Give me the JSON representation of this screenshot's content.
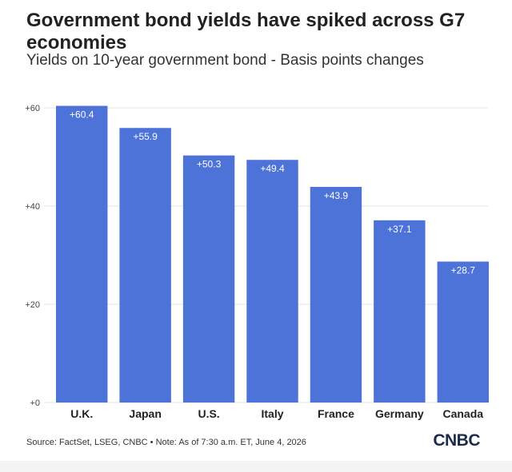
{
  "header": {
    "title": "Government bond yields have spiked across G7 economies",
    "subtitle": "Yields on 10-year government bond - Basis points changes"
  },
  "footer": {
    "source": "Source: FactSet, LSEG, CNBC • Note: As of 7:30 a.m. ET, June 4, 2026",
    "logo": "CNBC"
  },
  "colors": {
    "bar": "#4d73d9",
    "grid": "#e3e3e3",
    "bar_label": "#ffffff",
    "tick": "#444444",
    "category": "#222222"
  },
  "chart_data": {
    "type": "bar",
    "categories": [
      "U.K.",
      "Japan",
      "U.S.",
      "Italy",
      "France",
      "Germany",
      "Canada"
    ],
    "values": [
      60.4,
      55.9,
      50.3,
      49.4,
      43.9,
      37.1,
      28.7
    ],
    "data_labels": [
      "+60.4",
      "+55.9",
      "+50.3",
      "+49.4",
      "+43.9",
      "+37.1",
      "+28.7"
    ],
    "ylim": [
      0,
      60
    ],
    "yticks": [
      0,
      20,
      40,
      60
    ],
    "ytick_labels": [
      "+0",
      "+20",
      "+40",
      "+60"
    ],
    "grid": true
  }
}
